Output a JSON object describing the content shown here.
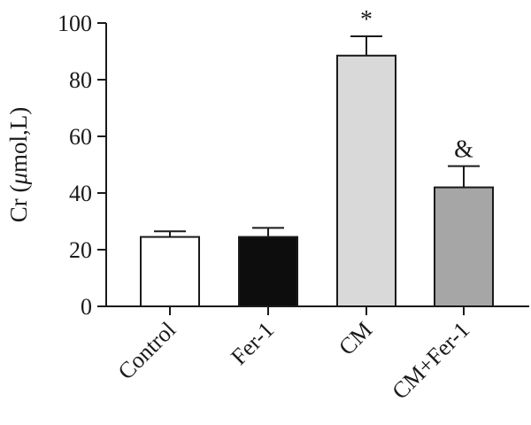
{
  "chart_data": {
    "type": "bar",
    "categories": [
      "Control",
      "Fer-1",
      "CM",
      "CM+Fer-1"
    ],
    "values": [
      24.5,
      24.5,
      88.5,
      42.0
    ],
    "errors": [
      2.0,
      3.2,
      6.8,
      7.5
    ],
    "bar_colors": [
      "#ffffff",
      "#0d0d0d",
      "#d9d9d9",
      "#a6a6a6"
    ],
    "annotations": [
      "",
      "",
      "*",
      "&"
    ],
    "ylabel_prefix": "Cr (",
    "ylabel_mu": "μ",
    "ylabel_suffix": "mol,L)",
    "ylim": [
      0,
      100
    ],
    "yticks": [
      "0",
      "20",
      "40",
      "60",
      "80",
      "100"
    ],
    "grid": false
  }
}
